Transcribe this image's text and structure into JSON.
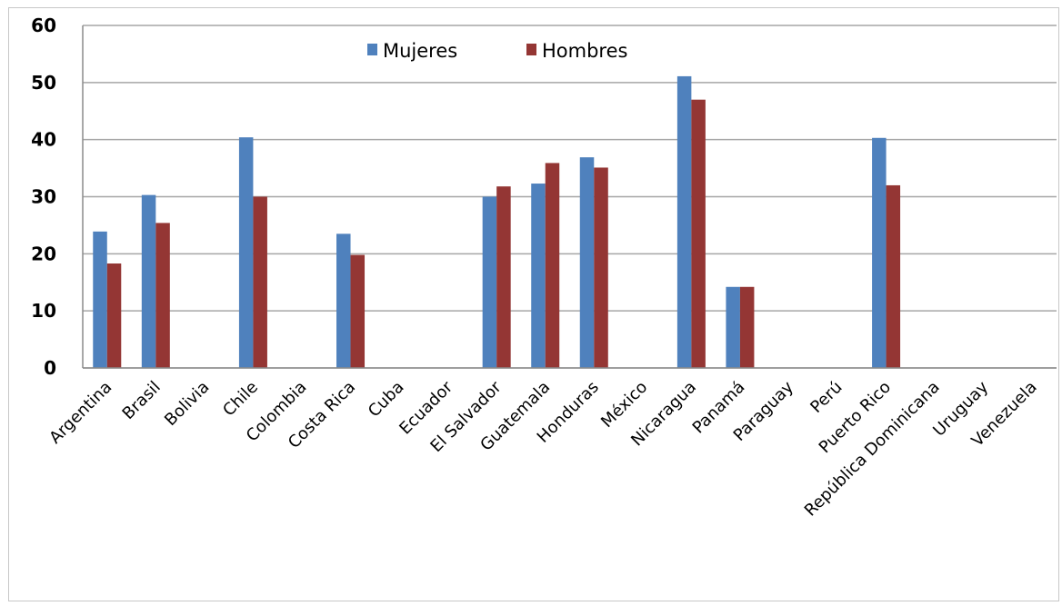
{
  "chart_data": {
    "type": "bar",
    "categories": [
      "Argentina",
      "Brasil",
      "Bolivia",
      "Chile",
      "Colombia",
      "Costa Rica",
      "Cuba",
      "Ecuador",
      "El Salvador",
      "Guatemala",
      "Honduras",
      "México",
      "Nicaragua",
      "Panamá",
      "Paraguay",
      "Perú",
      "Puerto Rico",
      "República Dominicana",
      "Uruguay",
      "Venezuela"
    ],
    "series": [
      {
        "name": "Mujeres",
        "color": "#4f81bd",
        "values": [
          23.9,
          30.3,
          null,
          40.4,
          null,
          23.5,
          null,
          null,
          30.0,
          32.3,
          36.9,
          null,
          51.1,
          14.2,
          null,
          null,
          40.3,
          null,
          null,
          null
        ]
      },
      {
        "name": "Hombres",
        "color": "#943634",
        "values": [
          18.3,
          25.4,
          null,
          30.0,
          null,
          19.8,
          null,
          null,
          31.8,
          35.9,
          35.1,
          null,
          47.0,
          14.2,
          null,
          null,
          32.0,
          null,
          null,
          null
        ]
      }
    ],
    "ylim": [
      0,
      60
    ],
    "yticks": [
      0,
      10,
      20,
      30,
      40,
      50,
      60
    ],
    "grid": true,
    "legend_position": "top-center"
  }
}
